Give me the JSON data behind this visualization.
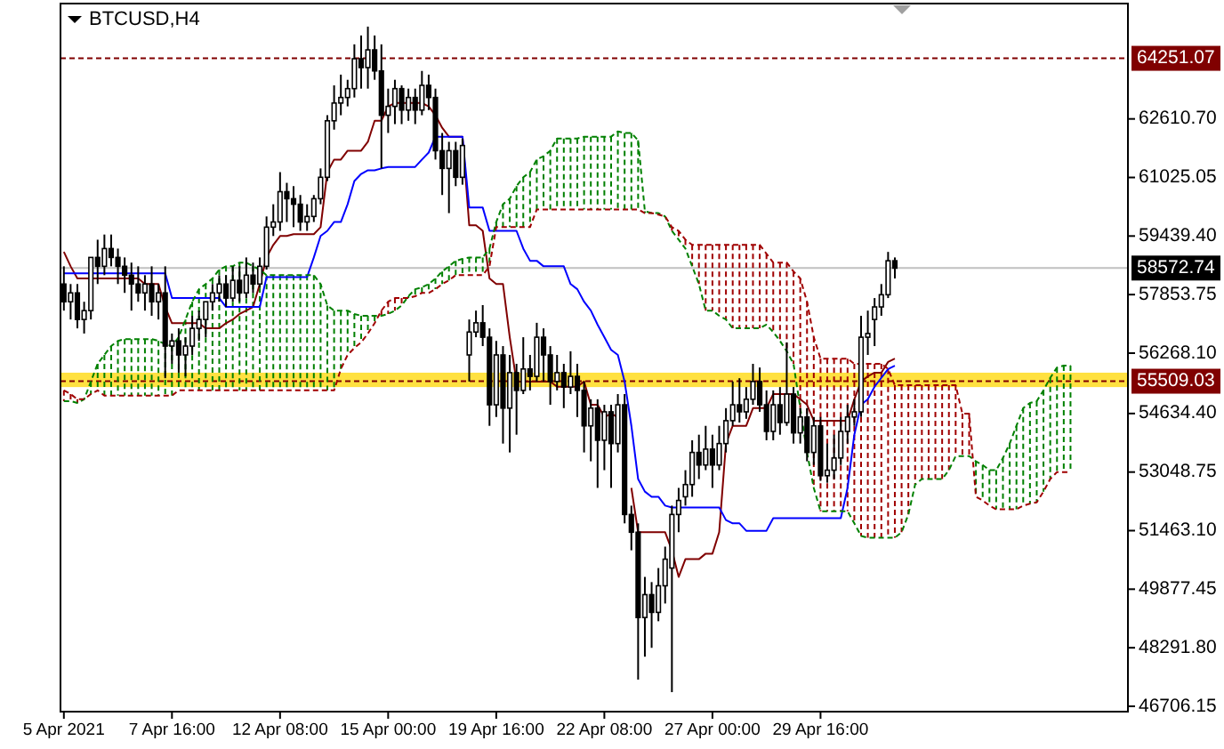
{
  "chart_data": {
    "type": "candlestick",
    "title": "BTCUSD,H4",
    "categories": [
      "5 Apr 2021",
      null,
      null,
      null,
      null,
      null,
      null,
      null,
      null,
      null,
      null,
      null,
      null,
      null,
      null,
      null,
      "7 Apr 16:00",
      null,
      null,
      null,
      null,
      null,
      null,
      null,
      null,
      null,
      null,
      null,
      null,
      null,
      null,
      null,
      "12 Apr 08:00",
      null,
      null,
      null,
      null,
      null,
      null,
      null,
      null,
      null,
      null,
      null,
      null,
      null,
      null,
      null,
      "15 Apr 00:00",
      null,
      null,
      null,
      null,
      null,
      null,
      null,
      null,
      null,
      null,
      null,
      null,
      null,
      null,
      null,
      "19 Apr 16:00",
      null,
      null,
      null,
      null,
      null,
      null,
      null,
      null,
      null,
      null,
      null,
      null,
      null,
      null,
      null,
      "22 Apr 08:00",
      null,
      null,
      null,
      null,
      null,
      null,
      null,
      null,
      null,
      null,
      null,
      null,
      null,
      null,
      null,
      "27 Apr 00:00",
      null,
      null,
      null,
      null,
      null,
      null,
      null,
      null,
      null,
      null,
      null,
      null,
      null,
      null,
      null,
      "29 Apr 16:00",
      null,
      null,
      null,
      null,
      null,
      null,
      null,
      null,
      null,
      null,
      null,
      null,
      null,
      null,
      null,
      null,
      null,
      null,
      null,
      null,
      null,
      null,
      null,
      null,
      null,
      null,
      null,
      null,
      null,
      null,
      null,
      null,
      null,
      null,
      null,
      null,
      null,
      null,
      null,
      null,
      null,
      null,
      null,
      null,
      null
    ],
    "ohlc": [
      [
        58140,
        58620,
        57420,
        57660
      ],
      [
        57660,
        58140,
        57180,
        57900
      ],
      [
        57900,
        58140,
        56940,
        57180
      ],
      [
        57180,
        57660,
        56800,
        57420
      ],
      [
        57420,
        58860,
        57180,
        58860
      ],
      [
        58860,
        59340,
        58140,
        58620
      ],
      [
        58620,
        59480,
        58380,
        59100
      ],
      [
        59100,
        59480,
        58620,
        58860
      ],
      [
        58860,
        59100,
        58140,
        58620
      ],
      [
        58620,
        58860,
        57900,
        58380
      ],
      [
        58380,
        58720,
        57420,
        58140
      ],
      [
        58140,
        58620,
        57660,
        57900
      ],
      [
        57900,
        58380,
        57420,
        58140
      ],
      [
        58140,
        58620,
        57280,
        57660
      ],
      [
        57660,
        58140,
        57180,
        57900
      ],
      [
        57900,
        58620,
        55590,
        56460
      ],
      [
        56460,
        56800,
        55980,
        56600
      ],
      [
        56600,
        56940,
        55740,
        56220
      ],
      [
        56220,
        56700,
        55640,
        56460
      ],
      [
        56460,
        57280,
        56220,
        56940
      ],
      [
        56940,
        57420,
        56600,
        57180
      ],
      [
        57180,
        57660,
        56700,
        57660
      ],
      [
        57660,
        58140,
        57420,
        57900
      ],
      [
        57900,
        58380,
        57660,
        58140
      ],
      [
        58140,
        58380,
        57520,
        57760
      ],
      [
        57760,
        58620,
        57660,
        58240
      ],
      [
        58240,
        58620,
        57660,
        57900
      ],
      [
        57900,
        58860,
        57760,
        58380
      ],
      [
        58380,
        58720,
        57900,
        58140
      ],
      [
        58140,
        58860,
        58050,
        58620
      ],
      [
        58620,
        59970,
        58530,
        59680
      ],
      [
        59680,
        60300,
        59440,
        59820
      ],
      [
        59820,
        61170,
        59580,
        60640
      ],
      [
        60640,
        60880,
        59820,
        60450
      ],
      [
        60450,
        60790,
        59680,
        60300
      ],
      [
        60300,
        60550,
        59580,
        59820
      ],
      [
        59820,
        60300,
        59580,
        59970
      ],
      [
        59970,
        60550,
        59820,
        60450
      ],
      [
        60450,
        61270,
        60300,
        61030
      ],
      [
        61030,
        62710,
        60930,
        62560
      ],
      [
        62560,
        63520,
        62320,
        63040
      ],
      [
        63040,
        63810,
        62710,
        63190
      ],
      [
        63190,
        63670,
        62950,
        63430
      ],
      [
        63430,
        64630,
        63190,
        64240
      ],
      [
        64240,
        64870,
        63430,
        64000
      ],
      [
        64000,
        65110,
        63430,
        64480
      ],
      [
        64480,
        64870,
        63670,
        63910
      ],
      [
        63910,
        64630,
        61270,
        62710
      ],
      [
        62710,
        63430,
        62230,
        62950
      ],
      [
        62950,
        63670,
        62470,
        63430
      ],
      [
        63430,
        63520,
        62470,
        62850
      ],
      [
        62850,
        63430,
        62560,
        63190
      ],
      [
        63190,
        63430,
        62470,
        62850
      ],
      [
        62850,
        63910,
        62710,
        63520
      ],
      [
        63520,
        63810,
        62850,
        63190
      ],
      [
        63190,
        63430,
        61510,
        61750
      ],
      [
        61750,
        62230,
        60550,
        61270
      ],
      [
        61270,
        61990,
        60060,
        61750
      ],
      [
        61750,
        61990,
        60790,
        61030
      ],
      [
        61030,
        62080,
        60830,
        61890
      ],
      [
        56220,
        57180,
        55500,
        56840
      ],
      [
        56840,
        57420,
        56700,
        57090
      ],
      [
        57090,
        57570,
        56460,
        56700
      ],
      [
        56700,
        56940,
        54300,
        54870
      ],
      [
        54870,
        56600,
        54540,
        56220
      ],
      [
        56220,
        56460,
        53820,
        54780
      ],
      [
        54780,
        56220,
        53580,
        55740
      ],
      [
        55740,
        55980,
        54060,
        55260
      ],
      [
        55260,
        56700,
        55160,
        55840
      ],
      [
        55840,
        56220,
        55260,
        55640
      ],
      [
        55640,
        57090,
        55500,
        56700
      ],
      [
        56700,
        56940,
        55500,
        56220
      ],
      [
        56220,
        56460,
        54870,
        55500
      ],
      [
        55500,
        56220,
        55260,
        55740
      ],
      [
        55740,
        55980,
        54780,
        55350
      ],
      [
        55350,
        56320,
        55160,
        55640
      ],
      [
        55640,
        55980,
        54540,
        55260
      ],
      [
        55260,
        55500,
        53580,
        54300
      ],
      [
        54300,
        55020,
        53340,
        54780
      ],
      [
        54780,
        55020,
        52620,
        53910
      ],
      [
        53910,
        54870,
        53100,
        54680
      ],
      [
        54680,
        54870,
        52620,
        53820
      ],
      [
        53820,
        55160,
        53580,
        54870
      ],
      [
        54870,
        55160,
        51660,
        51900
      ],
      [
        51900,
        52140,
        50930,
        51420
      ],
      [
        51420,
        51660,
        47430,
        49110
      ],
      [
        49110,
        50210,
        48050,
        49730
      ],
      [
        49730,
        50070,
        48290,
        49250
      ],
      [
        49250,
        50450,
        49010,
        49970
      ],
      [
        49970,
        51030,
        49490,
        50690
      ],
      [
        50450,
        52140,
        47090,
        51900
      ],
      [
        51900,
        52620,
        51420,
        52280
      ],
      [
        52380,
        53100,
        52140,
        52710
      ],
      [
        52710,
        53910,
        52380,
        53580
      ],
      [
        53580,
        54060,
        52860,
        53240
      ],
      [
        53240,
        54300,
        53100,
        53670
      ],
      [
        53670,
        54060,
        52620,
        53240
      ],
      [
        53240,
        54300,
        53100,
        53820
      ],
      [
        53820,
        54780,
        53580,
        54440
      ],
      [
        54440,
        55500,
        54300,
        54870
      ],
      [
        54870,
        55590,
        54390,
        54680
      ],
      [
        54680,
        55350,
        54490,
        55020
      ],
      [
        55020,
        55980,
        54870,
        55500
      ],
      [
        55500,
        55880,
        54680,
        54870
      ],
      [
        54870,
        55260,
        53910,
        54150
      ],
      [
        54150,
        55260,
        53910,
        54870
      ],
      [
        54870,
        55350,
        54060,
        54390
      ],
      [
        54390,
        56560,
        54300,
        55160
      ],
      [
        55160,
        55350,
        53820,
        54110
      ],
      [
        54110,
        54780,
        53820,
        54540
      ],
      [
        54540,
        54780,
        53340,
        53580
      ],
      [
        53580,
        54540,
        53240,
        54300
      ],
      [
        54300,
        54540,
        52810,
        52950
      ],
      [
        52950,
        53820,
        52760,
        53100
      ],
      [
        53100,
        54060,
        52860,
        53430
      ],
      [
        53430,
        54540,
        53240,
        54150
      ],
      [
        54150,
        54870,
        53820,
        54540
      ],
      [
        54540,
        55020,
        54300,
        54680
      ],
      [
        54680,
        57280,
        54540,
        56700
      ],
      [
        56700,
        57420,
        56220,
        56800
      ],
      [
        57180,
        57760,
        56460,
        57520
      ],
      [
        57520,
        58140,
        57280,
        57850
      ],
      [
        57850,
        59010,
        57760,
        58770
      ],
      [
        58770,
        58860,
        58290,
        58570
      ],
      null,
      null,
      null,
      null,
      null,
      null,
      null,
      null,
      null,
      null,
      null,
      null,
      null,
      null,
      null,
      null,
      null,
      null,
      null,
      null,
      null,
      null,
      null,
      null,
      null,
      null,
      null,
      null,
      null,
      null,
      null,
      null,
      null,
      null
    ],
    "series": [
      {
        "type": "line",
        "color": "#800000",
        "values": [
          59010,
          58620,
          58290,
          58290,
          58290,
          58290,
          58290,
          58290,
          58290,
          58290,
          58290,
          58290,
          58140,
          58140,
          58140,
          57520,
          57080,
          57080,
          57080,
          57080,
          57080,
          56940,
          56940,
          56940,
          57080,
          57180,
          57330,
          57420,
          57520,
          58140,
          58860,
          59200,
          59440,
          59440,
          59490,
          59490,
          59490,
          59490,
          59680,
          61170,
          61510,
          61510,
          61750,
          61750,
          61750,
          61990,
          62560,
          62560,
          62950,
          63040,
          63040,
          63040,
          63040,
          63040,
          62950,
          62710,
          62370,
          62130,
          62130,
          62130,
          59730,
          59730,
          59580,
          58290,
          58140,
          58140,
          56700,
          55500,
          55500,
          55500,
          55500,
          55500,
          55500,
          55360,
          55360,
          55360,
          55360,
          55500,
          54870,
          54870,
          54540,
          54630,
          54540,
          null,
          52620,
          51420,
          51420,
          51420,
          51420,
          51420,
          50930,
          50210,
          50690,
          50690,
          50690,
          50840,
          50840,
          51420,
          53820,
          54300,
          54300,
          54300,
          54780,
          54780,
          54780,
          55160,
          55160,
          55160,
          55160,
          55020,
          54870,
          54440,
          54440,
          54440,
          54440,
          54440,
          54440,
          55020,
          55500,
          55640,
          55740,
          55740,
          56030,
          56120,
          null,
          null,
          null,
          null,
          null,
          null,
          null,
          null,
          null,
          null,
          null,
          null,
          null,
          null,
          null,
          null,
          null,
          null,
          null,
          null,
          null,
          null,
          null,
          null,
          null,
          null,
          null,
          null,
          null,
          null,
          null,
          null,
          null,
          null
        ]
      },
      {
        "type": "line",
        "color": "#0000ff",
        "values": [
          58430,
          58430,
          58430,
          58430,
          58430,
          58430,
          58430,
          58430,
          58430,
          58430,
          58430,
          58430,
          58430,
          58430,
          58430,
          58430,
          57760,
          57760,
          57760,
          57760,
          57760,
          57760,
          57760,
          57760,
          57520,
          57520,
          57520,
          57520,
          57520,
          57520,
          58330,
          58330,
          58330,
          58330,
          58330,
          58330,
          58330,
          58860,
          59440,
          59580,
          59820,
          59820,
          60300,
          60930,
          61120,
          61220,
          61220,
          61270,
          61310,
          61310,
          61310,
          61310,
          61310,
          61510,
          61700,
          62130,
          62130,
          62130,
          62130,
          62130,
          60210,
          60210,
          60210,
          59580,
          59580,
          59580,
          59580,
          59580,
          59100,
          58770,
          58770,
          58620,
          58620,
          58620,
          58620,
          58140,
          58000,
          57660,
          57420,
          57040,
          56700,
          56360,
          56220,
          55500,
          54300,
          52860,
          52520,
          52380,
          52380,
          52140,
          52090,
          52090,
          52090,
          52090,
          52090,
          52090,
          52090,
          52090,
          51750,
          51660,
          51660,
          51460,
          51460,
          51460,
          51460,
          51800,
          51800,
          51800,
          51800,
          51800,
          51800,
          51800,
          51800,
          51800,
          51800,
          51800,
          52620,
          54060,
          54870,
          55020,
          55360,
          55600,
          55840,
          55930,
          null,
          null,
          null,
          null,
          null,
          null,
          null,
          null,
          null,
          null,
          null,
          null,
          null,
          null,
          null,
          null,
          null,
          null,
          null,
          null,
          null,
          null,
          null,
          null,
          null,
          null,
          null,
          null,
          null,
          null,
          null,
          null,
          null,
          null
        ]
      },
      {
        "type": "line",
        "color": "#008000",
        "line_style": "dashed",
        "values": [
          54970,
          54970,
          54920,
          55020,
          55500,
          55980,
          56220,
          56460,
          56600,
          56650,
          56650,
          56650,
          56650,
          56650,
          56600,
          56510,
          56460,
          56700,
          57180,
          57660,
          58000,
          58140,
          58290,
          58530,
          58620,
          58620,
          58720,
          58720,
          58620,
          58530,
          58380,
          58380,
          58380,
          58380,
          58380,
          58380,
          58380,
          58380,
          58140,
          57560,
          57420,
          57420,
          57420,
          57330,
          57280,
          57280,
          57280,
          57280,
          57330,
          57420,
          57560,
          57810,
          58000,
          58050,
          58140,
          58290,
          58480,
          58620,
          58770,
          58820,
          58860,
          58860,
          58860,
          59100,
          59820,
          60300,
          60450,
          60790,
          61030,
          61170,
          61510,
          61600,
          61750,
          62080,
          62080,
          62080,
          62080,
          62130,
          62130,
          62130,
          62130,
          62130,
          62270,
          62230,
          62230,
          62030,
          60110,
          60060,
          60060,
          59970,
          59580,
          59340,
          59100,
          58620,
          58140,
          57420,
          57420,
          57280,
          57180,
          56940,
          56940,
          56940,
          56940,
          56940,
          57040,
          56840,
          56600,
          56320,
          55980,
          54780,
          53580,
          52620,
          51990,
          51990,
          51990,
          51990,
          51990,
          51660,
          51320,
          51270,
          51270,
          51270,
          51270,
          51270,
          51420,
          51900,
          52710,
          52860,
          52860,
          52860,
          52860,
          53100,
          53480,
          53480,
          53480,
          53340,
          53240,
          53100,
          53100,
          53430,
          53820,
          54300,
          54780,
          54920,
          54970,
          55260,
          55600,
          55880,
          55930,
          55930,
          null,
          null,
          null,
          null,
          null,
          null,
          null,
          null
        ]
      },
      {
        "type": "line",
        "color": "#a00000",
        "line_style": "dashed",
        "values": [
          55260,
          55160,
          55020,
          55020,
          55160,
          55260,
          55120,
          55120,
          55120,
          55120,
          55120,
          55120,
          55120,
          55120,
          55120,
          55120,
          55120,
          55260,
          55260,
          55260,
          55260,
          55260,
          55260,
          55260,
          55260,
          55260,
          55260,
          55260,
          55260,
          55260,
          55260,
          55260,
          55260,
          55260,
          55260,
          55260,
          55260,
          55260,
          55260,
          55260,
          55260,
          55840,
          56220,
          56410,
          56560,
          56800,
          57080,
          57420,
          57660,
          57760,
          57760,
          57760,
          57810,
          57900,
          57900,
          58000,
          58140,
          58240,
          58380,
          58380,
          58380,
          58380,
          58380,
          58620,
          59680,
          59680,
          59680,
          59680,
          59680,
          59680,
          60160,
          60160,
          60160,
          60160,
          60160,
          60160,
          60160,
          60160,
          60160,
          60160,
          60160,
          60160,
          60160,
          60160,
          60160,
          60160,
          60060,
          60060,
          60020,
          59970,
          59680,
          59580,
          59340,
          59200,
          59200,
          59200,
          59200,
          59200,
          59200,
          59200,
          59200,
          59200,
          59200,
          59200,
          58960,
          58720,
          58720,
          58720,
          58480,
          58290,
          57660,
          56700,
          56120,
          56120,
          56120,
          56120,
          56120,
          55980,
          55980,
          55980,
          55980,
          55980,
          55840,
          55400,
          55400,
          55400,
          55400,
          55400,
          55400,
          55400,
          55400,
          55400,
          55400,
          54630,
          54630,
          52380,
          52280,
          52140,
          52040,
          52040,
          52040,
          52040,
          52140,
          52190,
          52230,
          52520,
          52860,
          53050,
          53050,
          53050,
          null,
          null,
          null,
          null,
          null,
          null,
          null,
          null
        ]
      }
    ],
    "ylim": [
      46562,
      65734
    ],
    "yticks": [
      {
        "value": 62610.7,
        "label": "62610.70"
      },
      {
        "value": 61025.05,
        "label": "61025.05"
      },
      {
        "value": 59439.4,
        "label": "59439.40"
      },
      {
        "value": 57853.75,
        "label": "57853.75"
      },
      {
        "value": 56268.1,
        "label": "56268.10"
      },
      {
        "value": 54634.4,
        "label": "54634.40"
      },
      {
        "value": 53048.75,
        "label": "53048.75"
      },
      {
        "value": 51463.1,
        "label": "51463.10"
      },
      {
        "value": 49877.45,
        "label": "49877.45"
      },
      {
        "value": 48291.8,
        "label": "48291.80"
      },
      {
        "value": 46706.15,
        "label": "46706.15"
      }
    ],
    "ref_lines": [
      {
        "axis": "y",
        "value": 64251.07,
        "label": "64251.07",
        "color": "#800000",
        "line_style": "dashed"
      },
      {
        "axis": "y",
        "value": 58572.74,
        "label": "58572.74",
        "color": "#c0c0c0",
        "line_style": "solid"
      },
      {
        "axis": "y",
        "value": 55509.03,
        "label": "55509.03",
        "color": "#800000",
        "line_style": "dashed"
      }
    ],
    "bands": [
      {
        "axis": "y",
        "from": 55350,
        "to": 55740,
        "color": "#ffd700"
      }
    ]
  }
}
